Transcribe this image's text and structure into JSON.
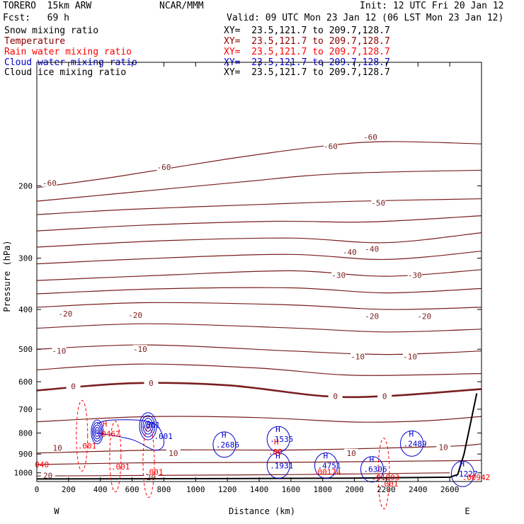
{
  "header": {
    "model": "TORERO  15km ARW",
    "center": "NCAR/MMM",
    "init": "Init: 12 UTC Fri 20 Jan 12",
    "fcst": "Fcst:   69 h",
    "valid": "Valid: 09 UTC Mon 23 Jan 12 (06 LST Mon 23 Jan 12)"
  },
  "legend": [
    {
      "label": "Snow mixing ratio",
      "xy": "XY=  23.5,121.7 to 209.7,128.7",
      "color": "#000000"
    },
    {
      "label": "Temperature",
      "xy": "XY=  23.5,121.7 to 209.7,128.7",
      "color": "#8b0000"
    },
    {
      "label": "Rain water mixing ratio",
      "xy": "XY=  23.5,121.7 to 209.7,128.7",
      "color": "#ff0000"
    },
    {
      "label": "Cloud water mixing ratio",
      "xy": "XY=  23.5,121.7 to 209.7,128.7",
      "color": "#0000cd"
    },
    {
      "label": "Cloud ice mixing ratio",
      "xy": "XY=  23.5,121.7 to 209.7,128.7",
      "color": "#000000"
    }
  ],
  "colors": {
    "temperature": "#7a1e1e",
    "rain": "#ff0000",
    "cloud_water": "#0000cd",
    "terrain": "#000000"
  },
  "chart_data": {
    "type": "cross-section",
    "title": "",
    "xlabel": "Distance (km)",
    "ylabel": "Pressure (hPa)",
    "xlim": [
      0,
      2800
    ],
    "ylim": [
      1050,
      100
    ],
    "y_scale": "log",
    "x_ticks": [
      0,
      200,
      400,
      600,
      800,
      1000,
      1200,
      1400,
      1600,
      1800,
      2000,
      2200,
      2400,
      2600
    ],
    "x_tick_labels": [
      "0",
      "200",
      "400",
      "600",
      "800",
      "1000",
      "1200",
      "1400",
      "1600",
      "1800",
      "2000",
      "2200",
      "2400",
      "2600"
    ],
    "y_ticks": [
      200,
      300,
      400,
      500,
      600,
      700,
      800,
      900,
      1000
    ],
    "y_tick_labels": [
      "200",
      "300",
      "400",
      "500",
      "600",
      "700",
      "800",
      "900",
      "1000"
    ],
    "x_end_labels": {
      "left": "W",
      "right": "E"
    },
    "temperature_isotherms": [
      {
        "label": "-60",
        "points": [
          [
            0,
            202
          ],
          [
            500,
            190
          ],
          [
            1200,
            172
          ],
          [
            1800,
            160
          ],
          [
            2200,
            156
          ],
          [
            2800,
            158
          ]
        ],
        "label_at": [
          [
            80,
            197
          ],
          [
            800,
            180
          ],
          [
            1850,
            160
          ],
          [
            2100,
            152
          ]
        ]
      },
      {
        "label": "-50",
        "points": [
          [
            0,
            235
          ],
          [
            600,
            228
          ],
          [
            1400,
            222
          ],
          [
            2000,
            218
          ],
          [
            2800,
            215
          ]
        ],
        "label_at": [
          [
            2150,
            220
          ]
        ]
      },
      {
        "label": "-40",
        "points": [
          [
            0,
            282
          ],
          [
            800,
            272
          ],
          [
            1600,
            268
          ],
          [
            2200,
            275
          ],
          [
            2800,
            260
          ]
        ],
        "label_at": [
          [
            1970,
            290
          ],
          [
            2110,
            285
          ]
        ]
      },
      {
        "label": "-30",
        "points": [
          [
            0,
            340
          ],
          [
            800,
            330
          ],
          [
            1600,
            322
          ],
          [
            2200,
            332
          ],
          [
            2800,
            320
          ]
        ],
        "label_at": [
          [
            1900,
            330
          ],
          [
            2380,
            330
          ]
        ]
      },
      {
        "label": "-20",
        "points": [
          [
            0,
            395
          ],
          [
            700,
            385
          ],
          [
            1600,
            390
          ],
          [
            2200,
            400
          ],
          [
            2800,
            395
          ]
        ],
        "label_at": [
          [
            180,
            410
          ],
          [
            620,
            413
          ],
          [
            2110,
            415
          ],
          [
            2440,
            415
          ]
        ]
      },
      {
        "label": "-10",
        "points": [
          [
            0,
            500
          ],
          [
            700,
            488
          ],
          [
            1600,
            505
          ],
          [
            2200,
            515
          ],
          [
            2800,
            505
          ]
        ],
        "label_at": [
          [
            140,
            505
          ],
          [
            650,
            500
          ],
          [
            2020,
            521
          ],
          [
            2350,
            521
          ]
        ]
      },
      {
        "label": "0",
        "points": [
          [
            0,
            630
          ],
          [
            600,
            605
          ],
          [
            1200,
            612
          ],
          [
            1800,
            650
          ],
          [
            2200,
            650
          ],
          [
            2800,
            625
          ]
        ],
        "label_at": [
          [
            230,
            615
          ],
          [
            720,
            605
          ],
          [
            1880,
            650
          ],
          [
            2190,
            650
          ]
        ]
      },
      {
        "label": "10",
        "points": [
          [
            0,
            895
          ],
          [
            800,
            880
          ],
          [
            1600,
            880
          ],
          [
            2200,
            870
          ],
          [
            2650,
            860
          ],
          [
            2800,
            850
          ]
        ],
        "label_at": [
          [
            130,
            870
          ],
          [
            860,
            895
          ],
          [
            1980,
            895
          ],
          [
            2560,
            866
          ]
        ]
      },
      {
        "label": "20",
        "points": [
          [
            0,
            1018
          ],
          [
            600,
            1015
          ],
          [
            1600,
            1010
          ],
          [
            2600,
            1000
          ]
        ],
        "label_at": [
          [
            70,
            1015
          ],
          [
            720,
            1025
          ]
        ]
      }
    ],
    "labels": [
      {
        "text": "H",
        "value": ".1535",
        "series": "cloud_water",
        "x": 1530,
        "p": 815
      },
      {
        "text": "H",
        "value": ".2489",
        "series": "cloud_water",
        "x": 2370,
        "p": 835
      },
      {
        "text": "H",
        "value": ".1931",
        "series": "cloud_water",
        "x": 1530,
        "p": 945
      },
      {
        "text": "H",
        "value": ".4751",
        "series": "cloud_water",
        "x": 1830,
        "p": 945
      },
      {
        "text": "H",
        "value": ".6306",
        "series": "cloud_water",
        "x": 2120,
        "p": 965
      },
      {
        "text": "H",
        "value": ".1227",
        "series": "cloud_water",
        "x": 2690,
        "p": 990
      },
      {
        "text": "H",
        "value": ".2686",
        "series": "cloud_water",
        "x": 1190,
        "p": 840
      },
      {
        "text": "H",
        "value": ".0462",
        "series": "rain",
        "x": 440,
        "p": 790
      },
      {
        "text": "",
        "value": ".001",
        "series": "cloud_water",
        "x": 720,
        "p": 752
      },
      {
        "text": "",
        "value": ".001",
        "series": "cloud_water",
        "x": 800,
        "p": 802
      },
      {
        "text": "H",
        "value": ".00",
        "series": "rain",
        "x": 1520,
        "p": 875
      },
      {
        "text": "",
        "value": ".001",
        "series": "rain",
        "x": 530,
        "p": 950
      },
      {
        "text": "",
        "value": ".001",
        "series": "rain",
        "x": 740,
        "p": 980
      },
      {
        "text": "",
        "value": ".001",
        "series": "rain",
        "x": 320,
        "p": 845
      },
      {
        "text": "",
        "value": ".00174",
        "series": "rain",
        "x": 1800,
        "p": 980
      },
      {
        "text": "",
        "value": ".01003",
        "series": "rain",
        "x": 2170,
        "p": 1010
      },
      {
        "text": "",
        "value": ".00942",
        "series": "rain",
        "x": 2740,
        "p": 1010
      },
      {
        "text": "",
        "value": ".001",
        "series": "rain",
        "x": 2220,
        "p": 1045
      },
      {
        "text": "",
        "value": "040",
        "series": "rain",
        "x": 50,
        "p": 940
      }
    ],
    "terrain": [
      [
        0,
        1035
      ],
      [
        1200,
        1033
      ],
      [
        2000,
        1030
      ],
      [
        2600,
        1025
      ],
      [
        2650,
        1010
      ],
      [
        2690,
        900
      ],
      [
        2730,
        760
      ],
      [
        2770,
        640
      ]
    ]
  }
}
